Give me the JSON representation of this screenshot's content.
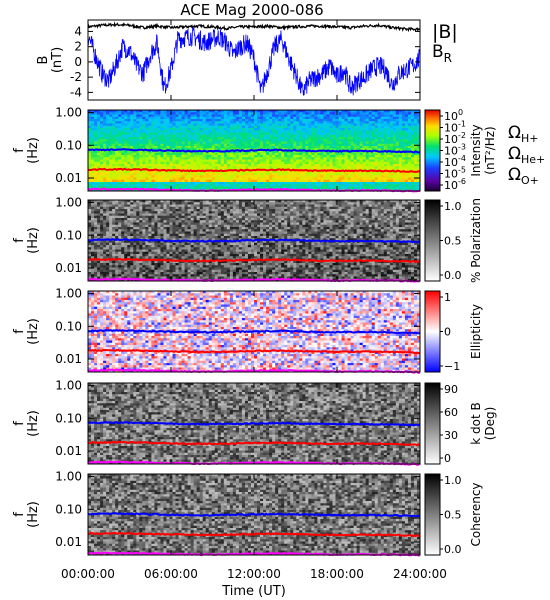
{
  "title": "ACE Mag 2000-086",
  "time_axis": {
    "label": "Time (UT)",
    "ticks": [
      "00:00:00",
      "06:00:00",
      "12:00:00",
      "18:00:00",
      "24:00:00"
    ],
    "range_hours": [
      0,
      24
    ]
  },
  "freq_ticks": [
    "1.00",
    "0.10",
    "0.01"
  ],
  "freq_axis_label": [
    "f",
    "(Hz)"
  ],
  "legend": {
    "top": [
      {
        "label": "|B|",
        "color": "#000000"
      },
      {
        "label": "B",
        "sub": "R",
        "color": "#0000ff"
      }
    ],
    "gyro": [
      {
        "label": "Ω",
        "sub": "H+",
        "color": "#0000ff"
      },
      {
        "label": "Ω",
        "sub": "He+",
        "color": "#ff0000"
      },
      {
        "label": "Ω",
        "sub": "O+",
        "color": "#ff00ff"
      }
    ]
  },
  "panels": [
    {
      "name": "magnetic-field",
      "ylabel": [
        "B",
        "(nT)"
      ],
      "yticks": [
        "4",
        "2",
        "0",
        "-2",
        "-4"
      ]
    },
    {
      "name": "intensity",
      "colorbar_label": [
        "Intensity",
        "(nT²/Hz)"
      ],
      "colorbar_ticks": [
        {
          "base": "10",
          "exp": "0"
        },
        {
          "base": "10",
          "exp": "-1"
        },
        {
          "base": "10",
          "exp": "-2"
        },
        {
          "base": "10",
          "exp": "-3"
        },
        {
          "base": "10",
          "exp": "-4"
        },
        {
          "base": "10",
          "exp": "-5"
        },
        {
          "base": "10",
          "exp": "-6"
        }
      ]
    },
    {
      "name": "polarization",
      "colorbar_label": [
        "% Polarization"
      ],
      "colorbar_ticks": [
        "1.0",
        "0.5",
        "0.0"
      ]
    },
    {
      "name": "ellipticity",
      "colorbar_label": [
        "Ellipticity"
      ],
      "colorbar_ticks": [
        "1",
        "0",
        "−1"
      ]
    },
    {
      "name": "k-dot-b",
      "colorbar_label": [
        "k dot B",
        "(Deg)"
      ],
      "colorbar_ticks": [
        "90",
        "60",
        "30",
        "0"
      ]
    },
    {
      "name": "coherency",
      "colorbar_label": [
        "Coherency"
      ],
      "colorbar_ticks": [
        "1.0",
        "0.5",
        "0.0"
      ]
    }
  ],
  "colors": {
    "field_magnitude": "#000000",
    "field_radial": "#0000ff",
    "gyro_h": "#0000ff",
    "gyro_he": "#ff0000",
    "gyro_o": "#ff00ff"
  },
  "chart_data": {
    "type": "line",
    "title": "ACE Mag 2000-086",
    "xlabel": "Time (UT)",
    "xlim": [
      0,
      24
    ],
    "field_panel": {
      "ylim": [
        -5,
        5.5
      ],
      "series": [
        {
          "name": "|B|",
          "x": [
            0,
            1,
            2,
            3,
            4,
            5,
            6,
            7,
            8,
            9,
            10,
            11,
            12,
            13,
            14,
            15,
            16,
            17,
            18,
            19,
            20,
            21,
            22,
            23,
            24
          ],
          "values": [
            4.6,
            4.8,
            4.9,
            4.8,
            4.5,
            4.7,
            4.5,
            4.6,
            4.7,
            4.6,
            4.4,
            4.6,
            4.6,
            4.7,
            4.5,
            4.6,
            4.7,
            4.7,
            4.6,
            4.5,
            4.7,
            4.8,
            4.5,
            4.3,
            4.3
          ]
        },
        {
          "name": "B_R",
          "x": [
            0,
            0.5,
            1,
            1.5,
            2,
            2.5,
            3,
            3.5,
            4,
            4.5,
            5,
            5.5,
            6,
            6.5,
            7,
            7.5,
            8,
            8.5,
            9,
            9.5,
            10,
            10.5,
            11,
            11.5,
            12,
            12.5,
            13,
            13.5,
            14,
            14.5,
            15,
            15.5,
            16,
            16.5,
            17,
            17.5,
            18,
            18.5,
            19,
            19.5,
            20,
            20.5,
            21,
            21.5,
            22,
            22.5,
            23,
            23.5,
            24
          ],
          "values": [
            3.5,
            1.0,
            -1.5,
            -2.5,
            -0.5,
            2.0,
            1.5,
            -0.5,
            -1.5,
            1.0,
            2.5,
            -3.5,
            -1.0,
            3.0,
            3.2,
            3.4,
            3.0,
            2.5,
            3.0,
            3.3,
            2.5,
            1.0,
            2.0,
            2.5,
            0.5,
            -4.0,
            -1.0,
            2.0,
            3.0,
            0.5,
            -1.5,
            -4.0,
            -2.5,
            -2.0,
            -1.5,
            -0.5,
            -2.0,
            -1.0,
            -3.5,
            -2.5,
            -2.0,
            -1.0,
            -0.5,
            -1.0,
            -3.0,
            -1.5,
            -1.0,
            -0.5,
            0.5
          ]
        }
      ]
    },
    "gyro_frequencies_hz": {
      "x": [
        0,
        2,
        4,
        6,
        8,
        10,
        12,
        14,
        16,
        18,
        20,
        22,
        24
      ],
      "H+": [
        0.072,
        0.074,
        0.072,
        0.068,
        0.066,
        0.067,
        0.07,
        0.072,
        0.068,
        0.066,
        0.067,
        0.065,
        0.062
      ],
      "He+": [
        0.018,
        0.0185,
        0.018,
        0.017,
        0.0165,
        0.0168,
        0.0175,
        0.018,
        0.017,
        0.0165,
        0.0168,
        0.0163,
        0.0155
      ],
      "O+": [
        0.0045,
        0.0046,
        0.0045,
        0.0043,
        0.0041,
        0.0042,
        0.0044,
        0.0045,
        0.0043,
        0.0041,
        0.0042,
        0.0041,
        0.0039
      ]
    },
    "frequency_range_hz": [
      0.004,
      1.2
    ],
    "frequency_scale": "log",
    "grid": false
  }
}
